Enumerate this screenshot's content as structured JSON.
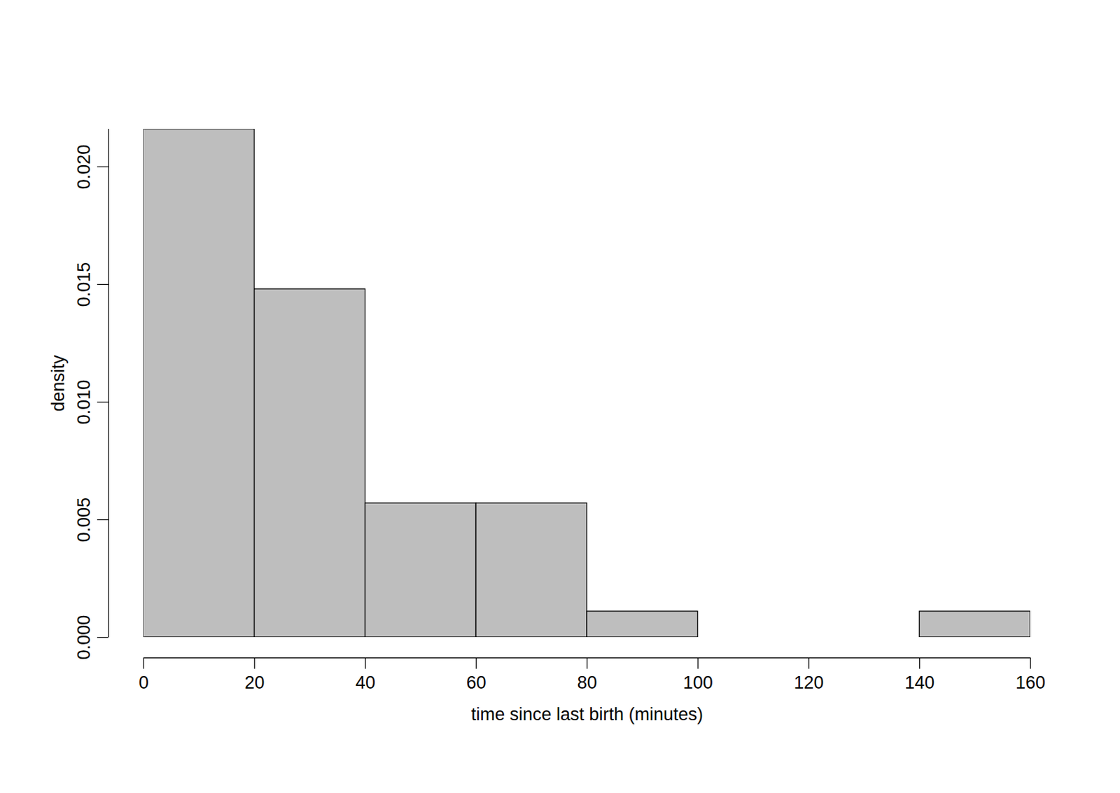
{
  "chart_data": {
    "type": "histogram",
    "x_label": "time since last birth (minutes)",
    "y_label": "density",
    "bins": [
      0,
      20,
      40,
      60,
      80,
      100,
      120,
      140,
      160
    ],
    "values": [
      0.0216,
      0.0148,
      0.0057,
      0.0057,
      0.0011,
      0,
      0,
      0.0011
    ],
    "color": "#bebebe",
    "xlim": [
      0,
      160
    ],
    "xticks": [
      0,
      20,
      40,
      60,
      80,
      100,
      120,
      140,
      160
    ],
    "ylim": [
      0,
      0.0216
    ],
    "yticks": [
      {
        "value": 0,
        "label": "0.000"
      },
      {
        "value": 0.005,
        "label": "0.005"
      },
      {
        "value": 0.01,
        "label": "0.010"
      },
      {
        "value": 0.015,
        "label": "0.015"
      },
      {
        "value": 0.02,
        "label": "0.020"
      }
    ],
    "grid": false
  }
}
